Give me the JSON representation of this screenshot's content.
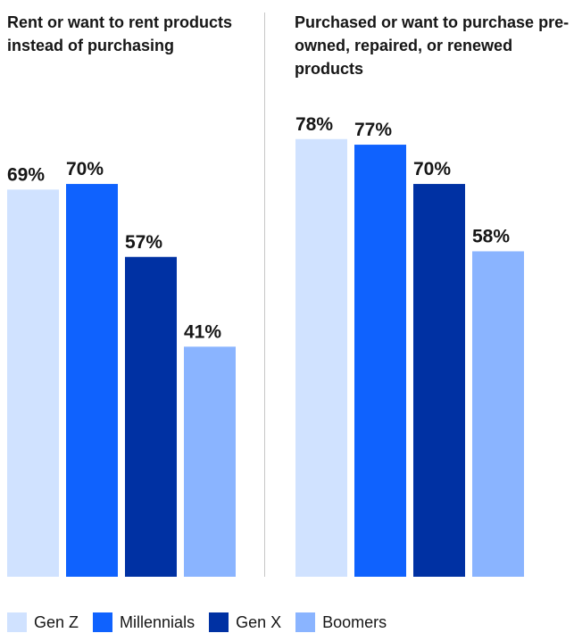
{
  "colors": {
    "Gen Z": "#d0e2ff",
    "Millennials": "#0f62fe",
    "Gen X": "#0031a3",
    "Boomers": "#8ab4ff"
  },
  "legend": [
    {
      "label": "Gen Z",
      "color": "#d0e2ff"
    },
    {
      "label": "Millennials",
      "color": "#0f62fe"
    },
    {
      "label": "Gen X",
      "color": "#0031a3"
    },
    {
      "label": "Boomers",
      "color": "#8ab4ff"
    }
  ],
  "chart_data": [
    {
      "type": "bar",
      "title": "Rent or want to rent products instead of purchasing",
      "categories": [
        "Gen Z",
        "Millennials",
        "Gen X",
        "Boomers"
      ],
      "values": [
        69,
        70,
        57,
        41
      ],
      "value_labels": [
        "69%",
        "70%",
        "57%",
        "41%"
      ],
      "unit": "%",
      "ylim": [
        0,
        100
      ],
      "grid": false,
      "legend_position": "bottom"
    },
    {
      "type": "bar",
      "title": "Purchased or want to purchase pre-owned, repaired, or renewed products",
      "categories": [
        "Gen Z",
        "Millennials",
        "Gen X",
        "Boomers"
      ],
      "values": [
        78,
        77,
        70,
        58
      ],
      "value_labels": [
        "78%",
        "77%",
        "70%",
        "58%"
      ],
      "unit": "%",
      "ylim": [
        0,
        100
      ],
      "grid": false,
      "legend_position": "bottom"
    }
  ]
}
